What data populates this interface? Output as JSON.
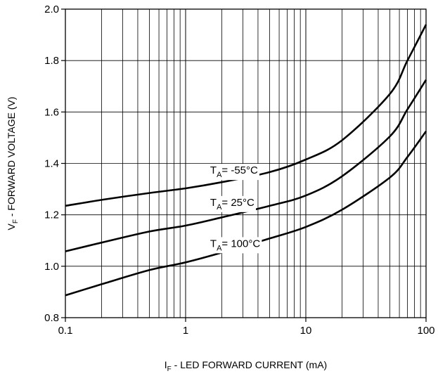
{
  "chart_data": {
    "type": "line",
    "x_scale": "log",
    "xlim": [
      0.1,
      100
    ],
    "ylim": [
      0.8,
      2.0
    ],
    "grid": true,
    "x_ticks": [
      {
        "value": 0.1,
        "label": "0.1"
      },
      {
        "value": 1,
        "label": "1"
      },
      {
        "value": 10,
        "label": "10"
      },
      {
        "value": 100,
        "label": "100"
      }
    ],
    "y_ticks": [
      {
        "value": 0.8,
        "label": "0.8"
      },
      {
        "value": 1.0,
        "label": "1.0"
      },
      {
        "value": 1.2,
        "label": "1.2"
      },
      {
        "value": 1.4,
        "label": "1.4"
      },
      {
        "value": 1.6,
        "label": "1.6"
      },
      {
        "value": 1.8,
        "label": "1.8"
      },
      {
        "value": 2.0,
        "label": "2.0"
      }
    ],
    "xlabel": {
      "prefix": "I",
      "sub": "F",
      "suffix": " - LED FORWARD CURRENT (mA)"
    },
    "ylabel": {
      "prefix": "V",
      "sub": "F",
      "suffix": " - FORWARD VOLTAGE (V)"
    },
    "series": [
      {
        "label": {
          "prefix": "T",
          "sub": "A",
          "suffix": "= -55°C"
        },
        "label_at": [
          1.6,
          1.36
        ],
        "points": [
          [
            0.1,
            1.235
          ],
          [
            0.2,
            1.258
          ],
          [
            0.5,
            1.285
          ],
          [
            1,
            1.303
          ],
          [
            2,
            1.327
          ],
          [
            5,
            1.366
          ],
          [
            10,
            1.415
          ],
          [
            20,
            1.49
          ],
          [
            50,
            1.67
          ],
          [
            70,
            1.8
          ],
          [
            100,
            1.94
          ]
        ]
      },
      {
        "label": {
          "prefix": "T",
          "sub": "A",
          "suffix": "= 25°C"
        },
        "label_at": [
          1.6,
          1.235
        ],
        "points": [
          [
            0.1,
            1.058
          ],
          [
            0.2,
            1.092
          ],
          [
            0.5,
            1.135
          ],
          [
            1,
            1.158
          ],
          [
            2,
            1.19
          ],
          [
            5,
            1.235
          ],
          [
            10,
            1.275
          ],
          [
            20,
            1.35
          ],
          [
            50,
            1.505
          ],
          [
            70,
            1.61
          ],
          [
            100,
            1.725
          ]
        ]
      },
      {
        "label": {
          "prefix": "T",
          "sub": "A",
          "suffix": "= 100°C"
        },
        "label_at": [
          1.6,
          1.075
        ],
        "points": [
          [
            0.1,
            0.887
          ],
          [
            0.2,
            0.93
          ],
          [
            0.5,
            0.985
          ],
          [
            1,
            1.015
          ],
          [
            2,
            1.053
          ],
          [
            5,
            1.108
          ],
          [
            10,
            1.153
          ],
          [
            20,
            1.22
          ],
          [
            50,
            1.345
          ],
          [
            70,
            1.425
          ],
          [
            100,
            1.525
          ]
        ]
      }
    ]
  }
}
